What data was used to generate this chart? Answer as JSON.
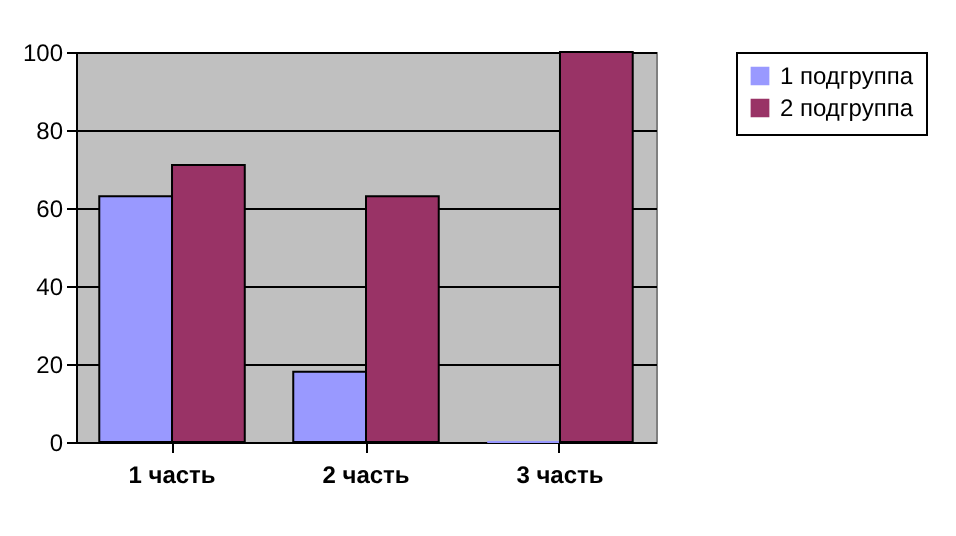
{
  "chart_data": {
    "type": "bar",
    "categories": [
      "1 часть",
      "2 часть",
      "3 часть"
    ],
    "series": [
      {
        "name": "1 подгруппа",
        "color": "#9999ff",
        "values": [
          63,
          18,
          0
        ]
      },
      {
        "name": "2 подгруппа",
        "color": "#993366",
        "values": [
          71,
          63,
          100
        ]
      }
    ],
    "ylim": [
      0,
      100
    ],
    "yticks": [
      0,
      20,
      40,
      60,
      80,
      100
    ],
    "grid": "y",
    "legend": "right"
  }
}
